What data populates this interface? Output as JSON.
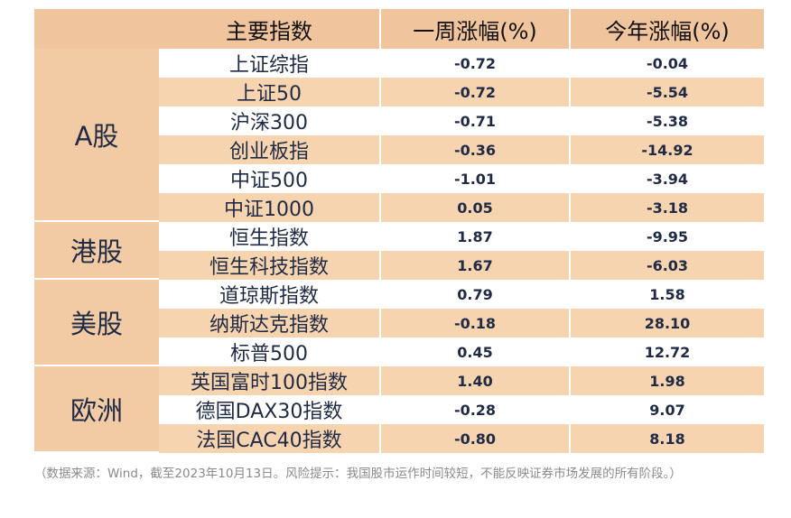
{
  "headers": {
    "index": "主要指数",
    "week": "一周涨幅(%)",
    "ytd": "今年涨幅(%)"
  },
  "groups": [
    {
      "label": "A股",
      "rows": [
        {
          "name": "上证综指",
          "week": "-0.72",
          "ytd": "-0.04"
        },
        {
          "name": "上证50",
          "week": "-0.72",
          "ytd": "-5.54"
        },
        {
          "name": "沪深300",
          "week": "-0.71",
          "ytd": "-5.38"
        },
        {
          "name": "创业板指",
          "week": "-0.36",
          "ytd": "-14.92"
        },
        {
          "name": "中证500",
          "week": "-1.01",
          "ytd": "-3.94"
        },
        {
          "name": "中证1000",
          "week": "0.05",
          "ytd": "-3.18"
        }
      ]
    },
    {
      "label": "港股",
      "rows": [
        {
          "name": "恒生指数",
          "week": "1.87",
          "ytd": "-9.95"
        },
        {
          "name": "恒生科技指数",
          "week": "1.67",
          "ytd": "-6.03"
        }
      ]
    },
    {
      "label": "美股",
      "rows": [
        {
          "name": "道琼斯指数",
          "week": "0.79",
          "ytd": "1.58"
        },
        {
          "name": "纳斯达克指数",
          "week": "-0.18",
          "ytd": "28.10"
        },
        {
          "name": "标普500",
          "week": "0.45",
          "ytd": "12.72"
        }
      ]
    },
    {
      "label": "欧洲",
      "rows": [
        {
          "name": "英国富时100指数",
          "week": "1.40",
          "ytd": "1.98"
        },
        {
          "name": "德国DAX30指数",
          "week": "-0.28",
          "ytd": "9.07"
        },
        {
          "name": "法国CAC40指数",
          "week": "-0.80",
          "ytd": "8.18"
        }
      ]
    }
  ],
  "footnote": "（数据来源：Wind，截至2023年10月13日。风险提示：我国股市运作时间较短，不能反映证券市场发展的所有阶段。）"
}
